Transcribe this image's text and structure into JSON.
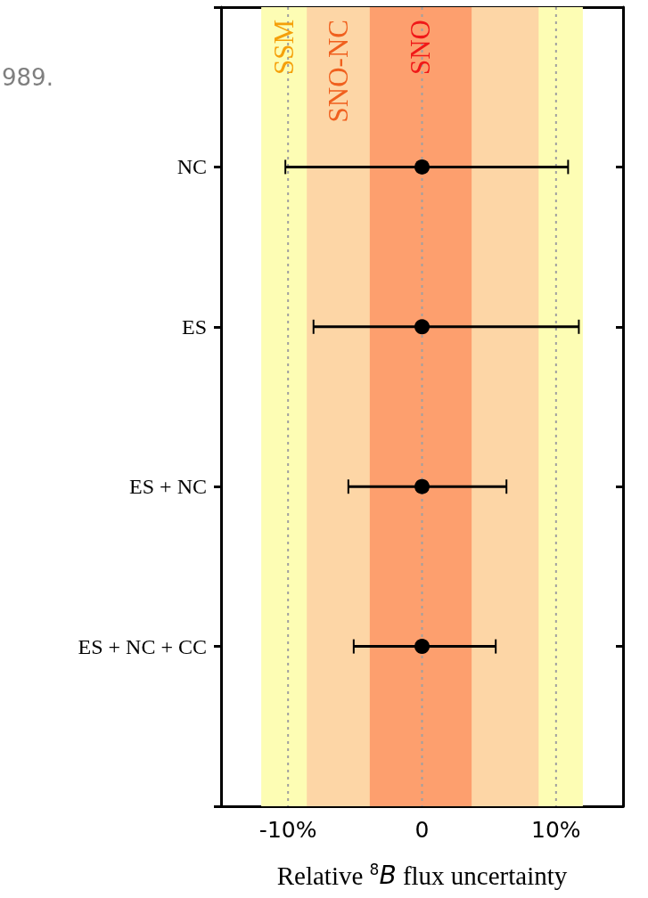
{
  "chart_data": {
    "type": "scatter",
    "orientation": "horizontal",
    "categories": [
      null,
      "NC",
      "ES",
      "ES + NC",
      "ES + NC + CC",
      null
    ],
    "series": [
      {
        "color": "#000000",
        "values": [
          null,
          0,
          0,
          0,
          0,
          null
        ],
        "errors": [
          null,
          [
            -10.2,
            10.9
          ],
          [
            -8.1,
            11.7
          ],
          [
            -5.5,
            6.3
          ],
          [
            -5.1,
            5.5
          ],
          null
        ]
      }
    ],
    "xlim": [
      -15,
      15
    ],
    "xticks": [
      {
        "value": -10,
        "label": "-10%"
      },
      0,
      {
        "value": 10,
        "label": "10%"
      }
    ],
    "xlabel": "Relative $^{8}$B flux uncertainty",
    "grid": "x",
    "marker": "circle",
    "bands": [
      {
        "axis": "x",
        "from": -12,
        "to": 12,
        "label": "SSM",
        "color": "#fdfdb4"
      },
      {
        "axis": "x",
        "from": -8.6,
        "to": 8.7,
        "label": "SNO-NC",
        "color": "#fdd6a6"
      },
      {
        "axis": "x",
        "from": -3.9,
        "to": 3.7,
        "label": "SNO",
        "color": "#fd9f6e"
      }
    ],
    "annotations": [
      "989."
    ]
  }
}
